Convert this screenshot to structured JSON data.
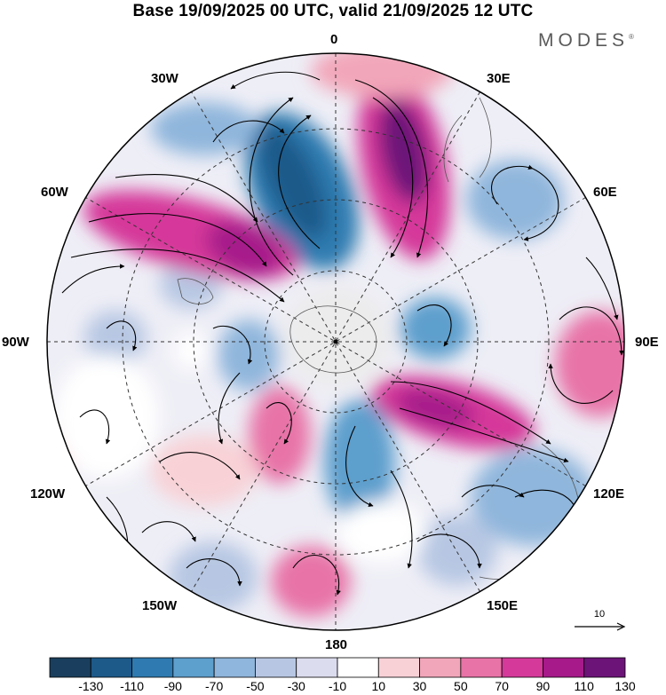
{
  "title": "Base 19/09/2025 00 UTC, valid 21/09/2025 12 UTC",
  "brand": {
    "name": "MODES",
    "mark": "®"
  },
  "longitude_labels": {
    "lon_0": "0",
    "lon_30e": "30E",
    "lon_60e": "60E",
    "lon_90e": "90E",
    "lon_120e": "120E",
    "lon_150e": "150E",
    "lon_180": "180",
    "lon_150w": "150W",
    "lon_120w": "120W",
    "lon_90w": "90W",
    "lon_60w": "60W",
    "lon_30w": "30W"
  },
  "reference_vector": {
    "value": "10"
  },
  "colorbar": {
    "colors": [
      "#1a3f5e",
      "#1d5a8a",
      "#2f7bb1",
      "#5d9fcd",
      "#8fb6dc",
      "#b7c7e3",
      "#dcdcef",
      "#ffffff",
      "#f8d1d6",
      "#f2a6b9",
      "#e873a7",
      "#d5399a",
      "#a61a8a",
      "#6d1479"
    ],
    "labels": [
      "-130",
      "-110",
      "-90",
      "-70",
      "-50",
      "-30",
      "-10",
      "10",
      "30",
      "50",
      "70",
      "90",
      "110",
      "130"
    ]
  }
}
